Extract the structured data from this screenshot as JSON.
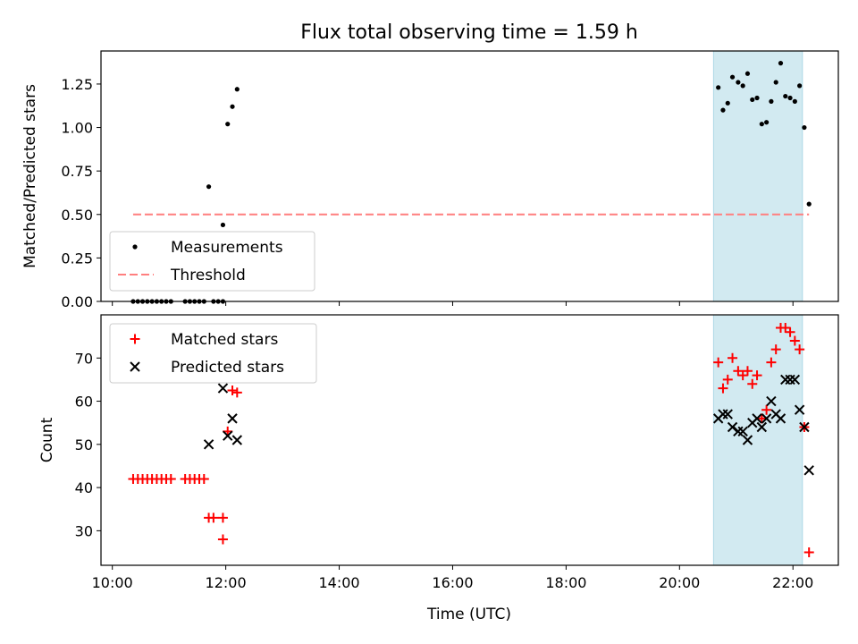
{
  "figure": {
    "title": "Flux total observing time = 1.59 h",
    "xlabel": "Time (UTC)"
  },
  "chart_data": [
    {
      "type": "scatter",
      "title": "Flux total observing time = 1.59 h",
      "ylabel": "Matched/Predicted stars",
      "xlim": [
        "09:48",
        "22:48"
      ],
      "ylim": [
        0,
        1.44
      ],
      "yticks": [
        "0.00",
        "0.25",
        "0.50",
        "0.75",
        "1.00",
        "1.25"
      ],
      "grid": false,
      "legend_position": "lower-left",
      "shaded_interval": {
        "x": [
          "20:36",
          "22:10"
        ],
        "color": "#add8e6"
      },
      "series": [
        {
          "name": "Measurements",
          "marker": "dot",
          "color": "#000000",
          "points": [
            [
              "10:22",
              0
            ],
            [
              "10:27",
              0
            ],
            [
              "10:32",
              0
            ],
            [
              "10:37",
              0
            ],
            [
              "10:42",
              0
            ],
            [
              "10:47",
              0
            ],
            [
              "10:52",
              0
            ],
            [
              "10:57",
              0
            ],
            [
              "11:02",
              0
            ],
            [
              "11:17",
              0
            ],
            [
              "11:22",
              0
            ],
            [
              "11:27",
              0
            ],
            [
              "11:32",
              0
            ],
            [
              "11:37",
              0
            ],
            [
              "11:42",
              0.66
            ],
            [
              "11:47",
              0
            ],
            [
              "11:52",
              0
            ],
            [
              "11:57",
              0.44
            ],
            [
              "11:57",
              0
            ],
            [
              "12:02",
              1.02
            ],
            [
              "12:07",
              1.12
            ],
            [
              "12:12",
              1.22
            ],
            [
              "20:41",
              1.23
            ],
            [
              "20:46",
              1.1
            ],
            [
              "20:51",
              1.14
            ],
            [
              "20:56",
              1.29
            ],
            [
              "21:02",
              1.26
            ],
            [
              "21:07",
              1.24
            ],
            [
              "21:12",
              1.31
            ],
            [
              "21:17",
              1.16
            ],
            [
              "21:22",
              1.17
            ],
            [
              "21:27",
              1.02
            ],
            [
              "21:32",
              1.03
            ],
            [
              "21:37",
              1.15
            ],
            [
              "21:42",
              1.26
            ],
            [
              "21:47",
              1.37
            ],
            [
              "21:52",
              1.18
            ],
            [
              "21:57",
              1.17
            ],
            [
              "22:02",
              1.15
            ],
            [
              "22:07",
              1.24
            ],
            [
              "22:12",
              1.0
            ],
            [
              "22:17",
              0.56
            ]
          ]
        },
        {
          "name": "Threshold",
          "style": "dashed-line",
          "color": "#ff7f7f",
          "points": [
            [
              "10:22",
              0.5
            ],
            [
              "22:17",
              0.5
            ]
          ]
        }
      ]
    },
    {
      "type": "scatter",
      "ylabel": "Count",
      "xlim": [
        "09:48",
        "22:48"
      ],
      "ylim": [
        22,
        80
      ],
      "xticks": [
        "10:00",
        "12:00",
        "14:00",
        "16:00",
        "18:00",
        "20:00",
        "22:00"
      ],
      "yticks": [
        "30",
        "40",
        "50",
        "60",
        "70"
      ],
      "grid": false,
      "legend_position": "upper-left",
      "shaded_interval": {
        "x": [
          "20:36",
          "22:10"
        ],
        "color": "#add8e6"
      },
      "series": [
        {
          "name": "Matched stars",
          "marker": "plus",
          "color": "#ff0000",
          "points": [
            [
              "10:22",
              42
            ],
            [
              "10:27",
              42
            ],
            [
              "10:32",
              42
            ],
            [
              "10:37",
              42
            ],
            [
              "10:42",
              42
            ],
            [
              "10:47",
              42
            ],
            [
              "10:52",
              42
            ],
            [
              "10:57",
              42
            ],
            [
              "11:02",
              42
            ],
            [
              "11:17",
              42
            ],
            [
              "11:22",
              42
            ],
            [
              "11:27",
              42
            ],
            [
              "11:32",
              42
            ],
            [
              "11:37",
              42
            ],
            [
              "11:42",
              33
            ],
            [
              "11:47",
              33
            ],
            [
              "11:57",
              33
            ],
            [
              "11:57",
              28
            ],
            [
              "12:02",
              53
            ],
            [
              "12:07",
              62.5
            ],
            [
              "12:12",
              62
            ],
            [
              "20:41",
              69
            ],
            [
              "20:46",
              63
            ],
            [
              "20:51",
              65
            ],
            [
              "20:56",
              70
            ],
            [
              "21:02",
              67
            ],
            [
              "21:07",
              66
            ],
            [
              "21:12",
              67
            ],
            [
              "21:17",
              64
            ],
            [
              "21:22",
              66
            ],
            [
              "21:27",
              56
            ],
            [
              "21:32",
              58
            ],
            [
              "21:37",
              69
            ],
            [
              "21:42",
              72
            ],
            [
              "21:47",
              77
            ],
            [
              "21:52",
              77
            ],
            [
              "21:57",
              76
            ],
            [
              "22:02",
              74
            ],
            [
              "22:07",
              72
            ],
            [
              "22:12",
              54
            ],
            [
              "22:17",
              25
            ]
          ]
        },
        {
          "name": "Predicted stars",
          "marker": "x",
          "color": "#000000",
          "points": [
            [
              "11:42",
              50
            ],
            [
              "11:57",
              63
            ],
            [
              "12:02",
              52
            ],
            [
              "12:07",
              56
            ],
            [
              "12:12",
              51
            ],
            [
              "20:41",
              56
            ],
            [
              "20:46",
              57
            ],
            [
              "20:51",
              57
            ],
            [
              "20:56",
              54
            ],
            [
              "21:02",
              53
            ],
            [
              "21:07",
              53
            ],
            [
              "21:12",
              51
            ],
            [
              "21:17",
              55
            ],
            [
              "21:22",
              56
            ],
            [
              "21:27",
              54
            ],
            [
              "21:32",
              56
            ],
            [
              "21:37",
              60
            ],
            [
              "21:42",
              57
            ],
            [
              "21:47",
              56
            ],
            [
              "21:52",
              65
            ],
            [
              "21:57",
              65
            ],
            [
              "22:02",
              65
            ],
            [
              "22:07",
              58
            ],
            [
              "22:12",
              54
            ],
            [
              "22:17",
              44
            ]
          ]
        }
      ]
    }
  ]
}
